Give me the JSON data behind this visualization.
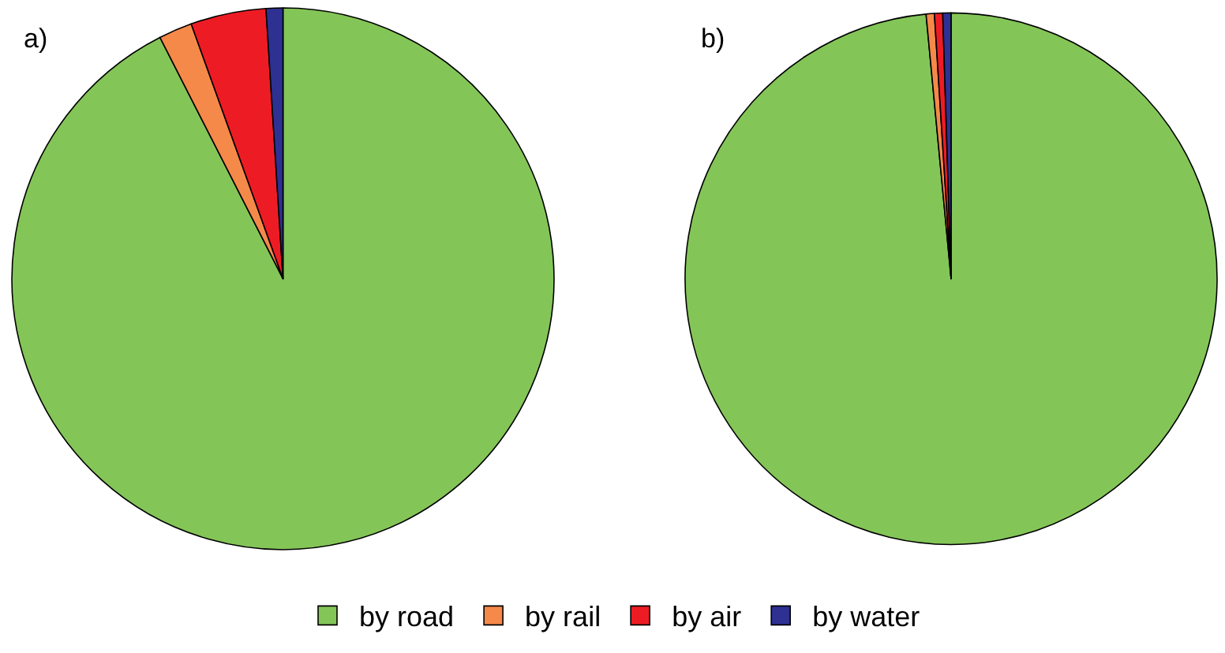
{
  "chart_data": [
    {
      "type": "pie",
      "title": "a)",
      "categories": [
        "by road",
        "by rail",
        "by air",
        "by water"
      ],
      "values": [
        92.5,
        2,
        4.5,
        1
      ],
      "colors": [
        "#84c558",
        "#f5894a",
        "#ed1c24",
        "#2e3192"
      ],
      "legend": "bottom"
    },
    {
      "type": "pie",
      "title": "b)",
      "values": [
        98.5,
        0.5,
        0.5,
        0.5
      ],
      "colors": [
        "#84c558",
        "#f5894a",
        "#ed1c24",
        "#2e3192"
      ]
    }
  ]
}
